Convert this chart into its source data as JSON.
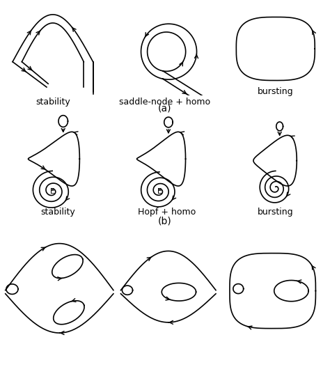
{
  "label_a": "(a)",
  "label_b": "(b)",
  "labels_row1": [
    "stability",
    "saddle-node + homo",
    "bursting"
  ],
  "labels_row2": [
    "stability",
    "Hopf + homo",
    "bursting"
  ],
  "bg_color": "#ffffff",
  "line_color": "#000000",
  "linewidth": 1.2
}
